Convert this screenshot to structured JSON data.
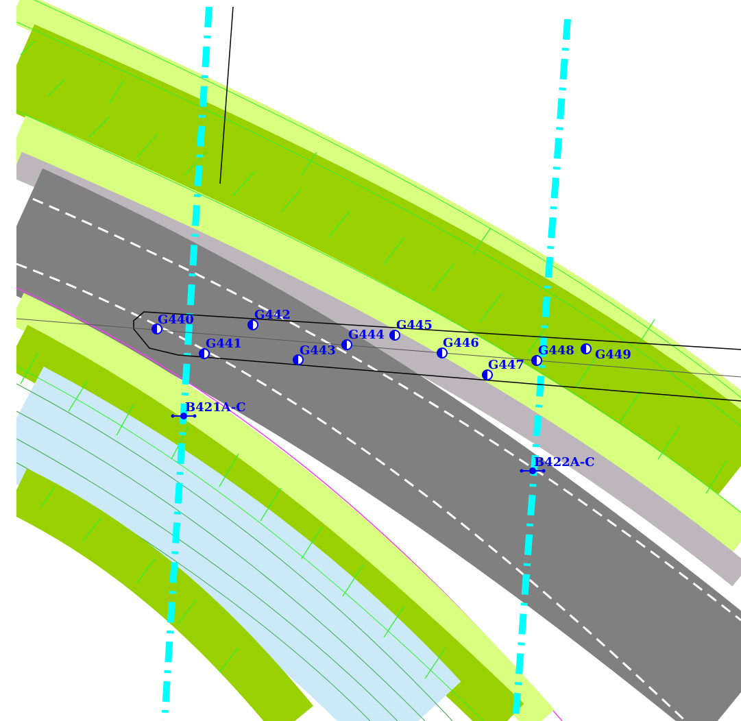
{
  "map": {
    "colors": {
      "background": "#ffffff",
      "verge_light": "#d9ff80",
      "verge_dark": "#99d100",
      "bright_green_line": "#33ee33",
      "shoulder": "#bdb6bd",
      "carriageway": "#808080",
      "lane_marking": "#ffffff",
      "water": "#cce9f8",
      "water_line": "#3aa84e",
      "edge_magenta": "#ee44ee",
      "utility_cyan": "#00ffff",
      "marker_blue": "#0000ee",
      "outline_black": "#000000"
    },
    "markers": [
      {
        "id": "G440",
        "label": "G440"
      },
      {
        "id": "G441",
        "label": "G441"
      },
      {
        "id": "G442",
        "label": "G442"
      },
      {
        "id": "G443",
        "label": "G443"
      },
      {
        "id": "G444",
        "label": "G444"
      },
      {
        "id": "G445",
        "label": "G445"
      },
      {
        "id": "G446",
        "label": "G446"
      },
      {
        "id": "G447",
        "label": "G447"
      },
      {
        "id": "G448",
        "label": "G448"
      },
      {
        "id": "G449",
        "label": "G449"
      }
    ],
    "boreholes": [
      {
        "id": "B421A-C",
        "label": "B421A-C"
      },
      {
        "id": "B422A-C",
        "label": "B422A-C"
      }
    ]
  }
}
